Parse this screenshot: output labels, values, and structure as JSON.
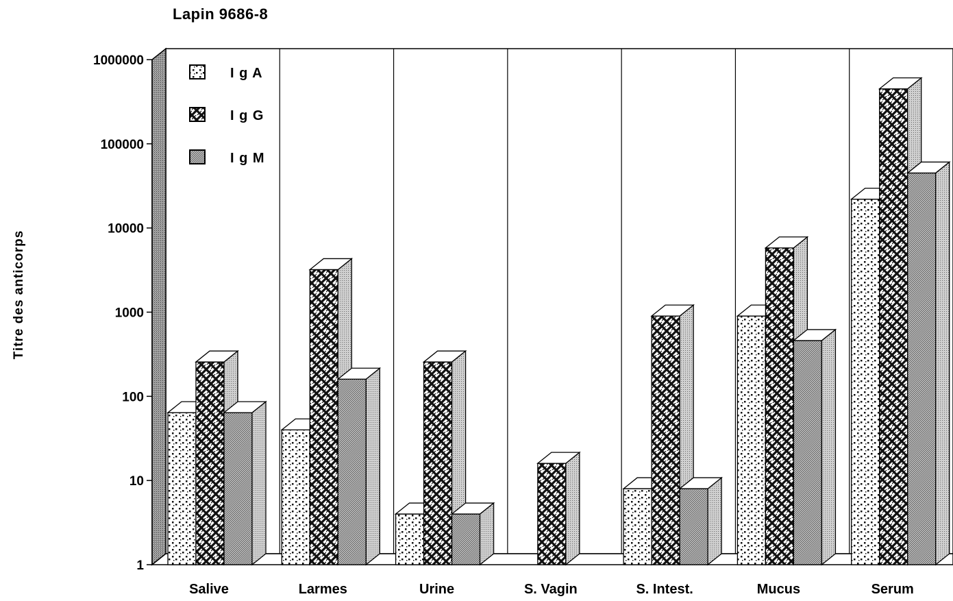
{
  "chart_data": {
    "type": "bar",
    "title": "Lapin  9686-8",
    "ylabel": "Titre des  anticorps",
    "xlabel": "",
    "yscale": "log",
    "ylim": [
      1,
      1000000
    ],
    "yticks": [
      1,
      10,
      100,
      1000,
      10000,
      100000,
      1000000
    ],
    "ytick_labels": [
      "1",
      "10",
      "100",
      "1000",
      "10000",
      "100000",
      "1000000"
    ],
    "categories": [
      "Salive",
      "Larmes",
      "Urine",
      "S. Vagin",
      "S. Intest.",
      "Mucus",
      "Serum"
    ],
    "series": [
      {
        "name": "I g A",
        "pattern": "dots",
        "values": [
          64,
          40,
          4,
          null,
          8,
          900,
          22000
        ]
      },
      {
        "name": "I g G",
        "pattern": "weave",
        "values": [
          256,
          3200,
          256,
          16,
          900,
          5800,
          450000
        ]
      },
      {
        "name": "I g M",
        "pattern": "shaded",
        "values": [
          64,
          160,
          4,
          null,
          8,
          460,
          45000
        ]
      }
    ],
    "legend_position": "top-left",
    "grid": false,
    "style": "3d"
  }
}
